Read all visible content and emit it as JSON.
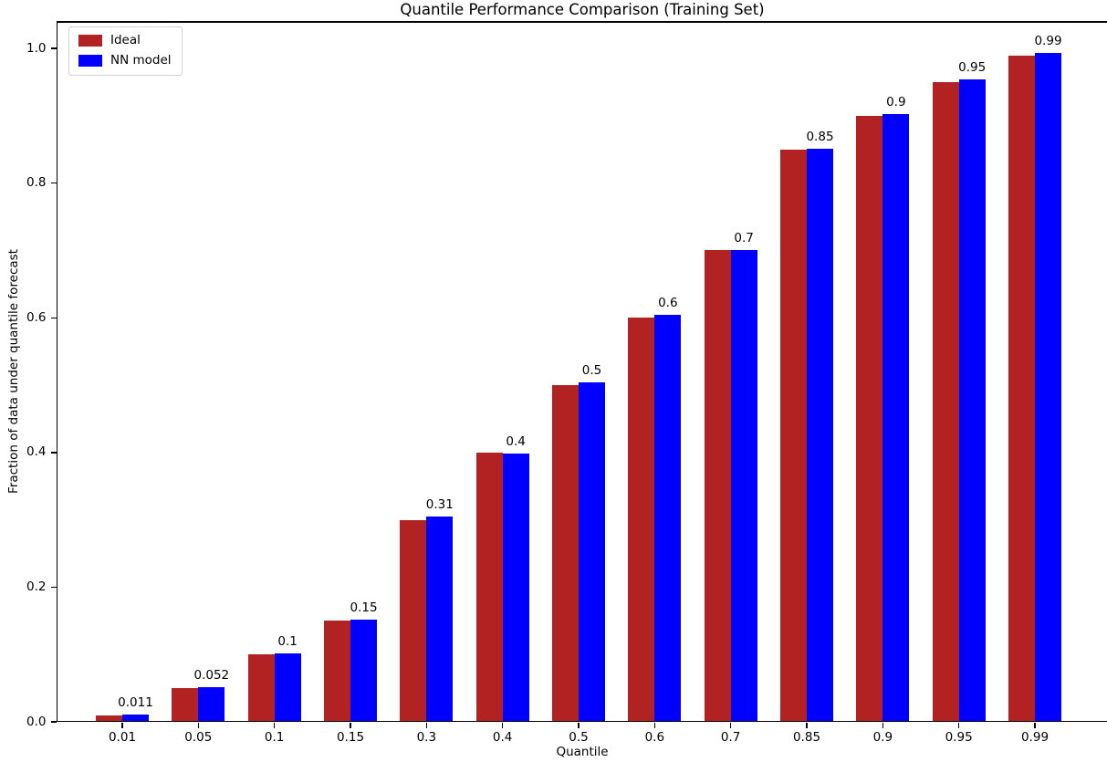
{
  "chart_data": {
    "type": "bar",
    "title": "Quantile Performance Comparison (Training Set)",
    "xlabel": "Quantile",
    "ylabel": "Fraction of data under quantile forecast",
    "categories": [
      "0.01",
      "0.05",
      "0.1",
      "0.15",
      "0.3",
      "0.4",
      "0.5",
      "0.6",
      "0.7",
      "0.85",
      "0.9",
      "0.95",
      "0.99"
    ],
    "series": [
      {
        "name": "Ideal",
        "color": "#b22222",
        "values": [
          0.01,
          0.05,
          0.1,
          0.15,
          0.3,
          0.4,
          0.5,
          0.6,
          0.7,
          0.85,
          0.9,
          0.95,
          0.99
        ]
      },
      {
        "name": "NN model",
        "color": "#0000ff",
        "values": [
          0.011,
          0.052,
          0.102,
          0.152,
          0.305,
          0.398,
          0.504,
          0.605,
          0.7,
          0.851,
          0.903,
          0.954,
          0.993
        ],
        "labels": [
          "0.011",
          "0.052",
          "0.1",
          "0.15",
          "0.31",
          "0.4",
          "0.5",
          "0.6",
          "0.7",
          "0.85",
          "0.9",
          "0.95",
          "0.99"
        ]
      }
    ],
    "y_ticks": [
      "0.0",
      "0.2",
      "0.4",
      "0.6",
      "0.8",
      "1.0"
    ],
    "ylim": [
      0,
      1.0408
    ],
    "grid": false,
    "legend_position": "upper-left",
    "bar_labels_on_series": "NN model",
    "axis_color": "#000000",
    "background_color": "#ffffff"
  }
}
